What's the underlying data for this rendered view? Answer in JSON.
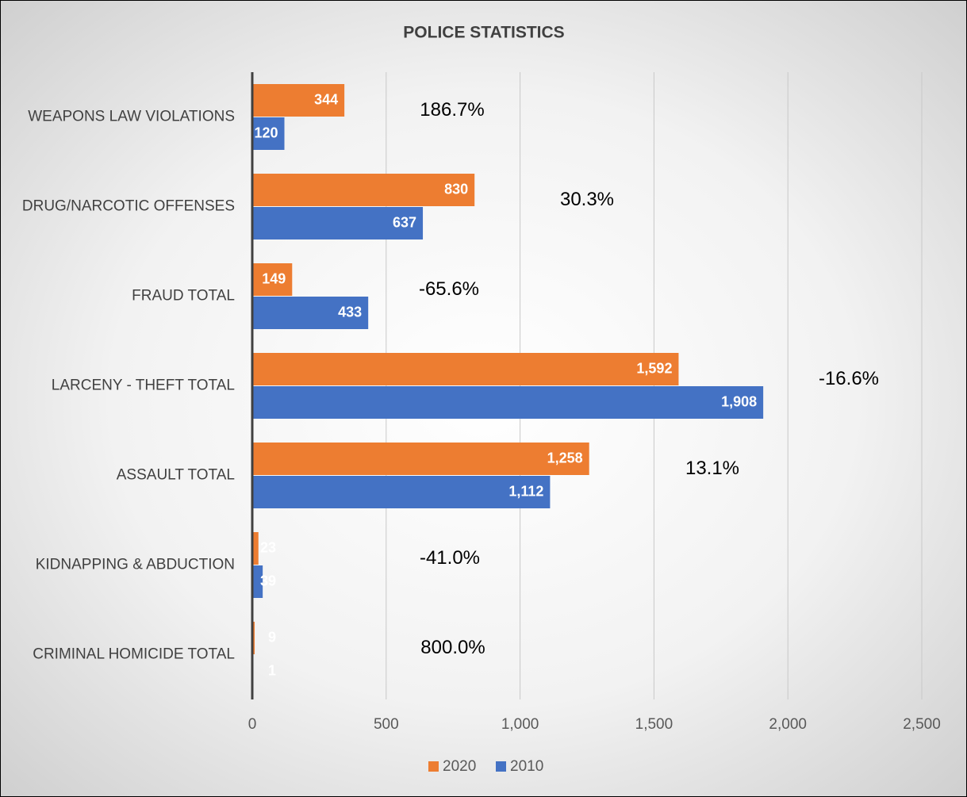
{
  "chart_data": {
    "type": "bar",
    "orientation": "horizontal",
    "title": "POLICE STATISTICS",
    "categories": [
      "WEAPONS LAW VIOLATIONS",
      "DRUG/NARCOTIC OFFENSES",
      "FRAUD TOTAL",
      "LARCENY - THEFT TOTAL",
      "ASSAULT TOTAL",
      "KIDNAPPING & ABDUCTION",
      "CRIMINAL HOMICIDE TOTAL"
    ],
    "series": [
      {
        "name": "2020",
        "color": "#ed7d31",
        "values": [
          344,
          830,
          149,
          1592,
          1258,
          23,
          9
        ],
        "value_labels": [
          "344",
          "830",
          "149",
          "1,592",
          "1,258",
          "23",
          "9"
        ]
      },
      {
        "name": "2010",
        "color": "#4472c4",
        "values": [
          120,
          637,
          433,
          1908,
          1112,
          39,
          1
        ],
        "value_labels": [
          "120",
          "637",
          "433",
          "1,908",
          "1,112",
          "39",
          "1"
        ]
      }
    ],
    "annotations": [
      "186.7%",
      "30.3%",
      "-65.6%",
      "-16.6%",
      "13.1%",
      "-41.0%",
      "800.0%"
    ],
    "xlim": [
      0,
      2500
    ],
    "xticks": [
      0,
      500,
      {
        "value": 1000,
        "label": "1,000"
      },
      {
        "value": 1500,
        "label": "1,500"
      },
      {
        "value": 2000,
        "label": "2,000"
      },
      {
        "value": 2500,
        "label": "2,500"
      }
    ],
    "grid": true,
    "legend": "bottom"
  }
}
